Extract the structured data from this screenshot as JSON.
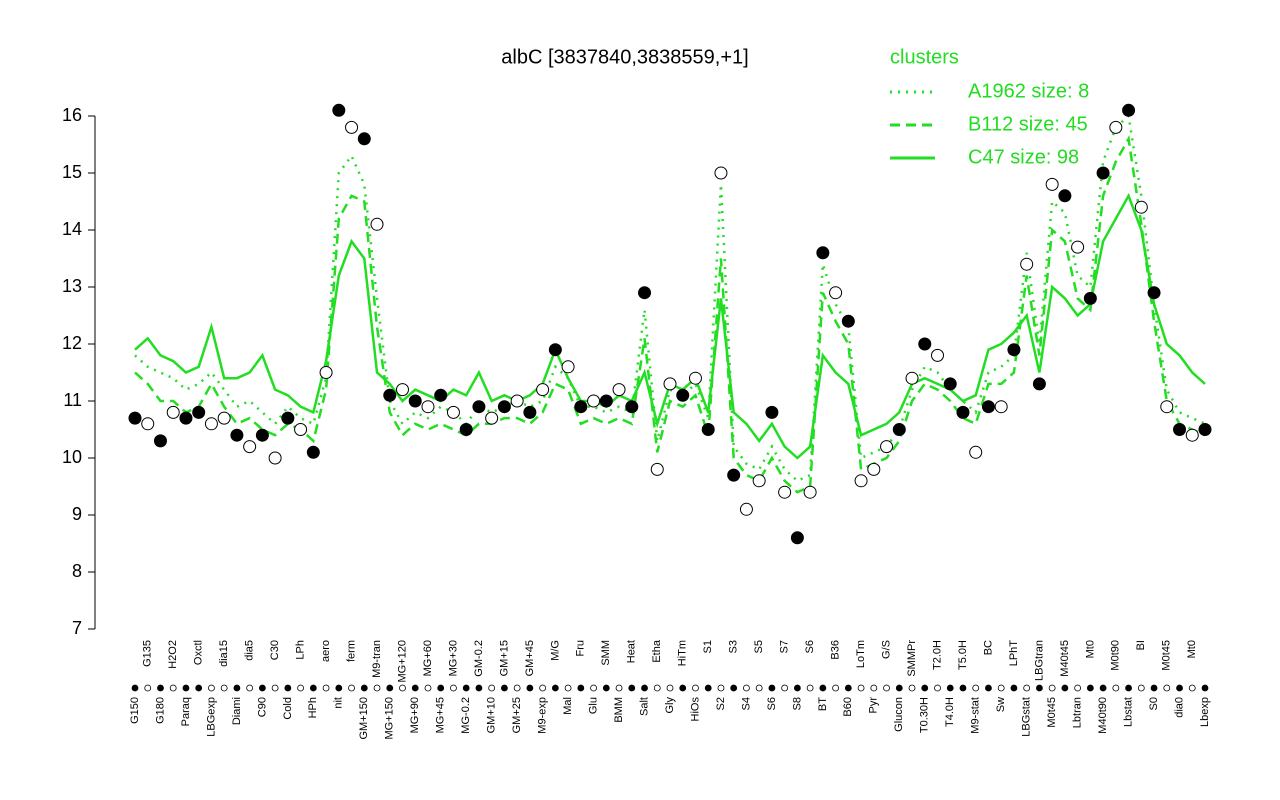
{
  "chart_data": {
    "type": "line",
    "title": "albC [3837840,3838559,+1]",
    "legend_title": "clusters",
    "legend_position": "top-right",
    "ylim": [
      7,
      16
    ],
    "yticks": [
      7,
      8,
      9,
      10,
      11,
      12,
      13,
      14,
      15,
      16
    ],
    "categories": [
      "G150",
      "G135",
      "G180",
      "H2O2",
      "Paraq",
      "Oxctl",
      "LBGexp",
      "dia15",
      "Diami",
      "dia5",
      "C90",
      "C30",
      "Cold",
      "LPh",
      "HPh",
      "aero",
      "nit",
      "ferm",
      "GM+150",
      "M9-tran",
      "MG+150",
      "MG+120",
      "MG+90",
      "MG+60",
      "MG+45",
      "MG+30",
      "MG-0.2",
      "GM-0.2",
      "GM+10",
      "GM+15",
      "GM+25",
      "GM+45",
      "M9-exp",
      "M/G",
      "Mal",
      "Fru",
      "Glu",
      "SMM",
      "BMM",
      "Heat",
      "Salt",
      "Etha",
      "Gly",
      "HiTm",
      "HiOs",
      "S1",
      "S2",
      "S3",
      "S4",
      "S5",
      "S6",
      "S7",
      "S8",
      "S6",
      "BT",
      "B36",
      "B60",
      "LoTm",
      "Pyr",
      "G/S",
      "Glucon",
      "SMMPr",
      "T0.30H",
      "T2.0H",
      "T4.0H",
      "T5.0H",
      "M9-stat",
      "BC",
      "Sw",
      "LPhT",
      "LBGstat",
      "LBGtran",
      "M0t45",
      "M40t45",
      "Lbtran",
      "Mt0",
      "M40t90",
      "M0t90",
      "Lbstat",
      "BI",
      "S0",
      "M0t45",
      "dia0",
      "Mt0",
      "Lbexp"
    ],
    "series": [
      {
        "name": "A1962 size: 8",
        "color": "#22dd22",
        "dash": "dotted",
        "values": [
          11.8,
          11.6,
          11.5,
          11.4,
          11.2,
          11.3,
          11.5,
          11.2,
          10.9,
          11.0,
          10.8,
          10.6,
          10.9,
          10.7,
          10.6,
          11.4,
          15.0,
          15.3,
          14.8,
          12.8,
          11.0,
          10.6,
          10.8,
          10.7,
          10.9,
          10.8,
          10.6,
          10.9,
          10.8,
          10.9,
          11.0,
          10.9,
          11.0,
          11.6,
          11.4,
          10.9,
          10.9,
          10.8,
          10.9,
          10.8,
          12.6,
          10.3,
          11.2,
          11.1,
          11.3,
          10.7,
          14.8,
          10.2,
          9.9,
          9.8,
          10.2,
          9.8,
          9.6,
          9.7,
          13.4,
          12.7,
          12.3,
          10.0,
          10.1,
          10.2,
          10.5,
          11.2,
          11.6,
          11.5,
          11.2,
          11.0,
          10.8,
          11.5,
          11.6,
          11.8,
          13.6,
          12.0,
          14.5,
          14.3,
          13.2,
          13.0,
          15.2,
          15.8,
          16.0,
          14.6,
          12.7,
          11.2,
          10.8,
          10.7,
          10.6
        ]
      },
      {
        "name": "B112 size: 45",
        "color": "#22dd22",
        "dash": "dashed",
        "values": [
          11.5,
          11.3,
          11.0,
          11.0,
          10.8,
          10.9,
          11.3,
          10.9,
          10.6,
          10.7,
          10.5,
          10.4,
          10.6,
          10.5,
          10.3,
          11.2,
          14.2,
          14.6,
          14.5,
          12.3,
          10.8,
          10.4,
          10.6,
          10.5,
          10.6,
          10.5,
          10.4,
          10.6,
          10.6,
          10.7,
          10.7,
          10.6,
          10.8,
          11.3,
          11.2,
          10.6,
          10.7,
          10.6,
          10.7,
          10.6,
          12.1,
          10.1,
          11.0,
          10.9,
          11.1,
          10.4,
          13.5,
          10.0,
          9.7,
          9.6,
          10.0,
          9.6,
          9.4,
          9.5,
          12.9,
          12.4,
          12.0,
          9.8,
          9.9,
          10.0,
          10.3,
          11.0,
          11.3,
          11.2,
          11.0,
          10.7,
          10.6,
          11.3,
          11.3,
          11.5,
          13.2,
          11.8,
          14.0,
          13.8,
          12.8,
          12.6,
          14.6,
          15.2,
          15.6,
          14.1,
          12.4,
          11.0,
          10.6,
          10.5,
          10.4
        ]
      },
      {
        "name": "C47 size: 98",
        "color": "#22dd22",
        "dash": "solid",
        "values": [
          11.9,
          12.1,
          11.8,
          11.7,
          11.5,
          11.6,
          12.3,
          11.4,
          11.4,
          11.5,
          11.8,
          11.2,
          11.1,
          10.9,
          10.8,
          11.7,
          13.2,
          13.8,
          13.5,
          11.5,
          11.3,
          11.0,
          11.2,
          11.1,
          11.0,
          11.2,
          11.1,
          11.5,
          11.0,
          11.1,
          11.0,
          11.1,
          11.3,
          11.9,
          11.4,
          11.0,
          11.0,
          10.9,
          11.1,
          11.0,
          11.5,
          10.6,
          11.3,
          11.2,
          11.4,
          10.8,
          12.8,
          10.8,
          10.6,
          10.3,
          10.6,
          10.2,
          10.0,
          10.2,
          11.8,
          11.5,
          11.3,
          10.4,
          10.5,
          10.6,
          10.8,
          11.3,
          11.4,
          11.3,
          11.2,
          11.0,
          11.1,
          11.9,
          12.0,
          12.2,
          12.5,
          11.5,
          13.0,
          12.8,
          12.5,
          12.7,
          13.8,
          14.2,
          14.6,
          14.0,
          12.7,
          12.0,
          11.8,
          11.5,
          11.3
        ]
      }
    ],
    "points": {
      "values": [
        10.7,
        10.6,
        10.3,
        10.8,
        10.7,
        10.8,
        10.6,
        10.7,
        10.4,
        10.2,
        10.4,
        10.0,
        10.7,
        10.5,
        10.1,
        11.5,
        16.1,
        15.8,
        15.6,
        14.1,
        11.1,
        11.2,
        11.0,
        10.9,
        11.1,
        10.8,
        10.5,
        10.9,
        10.7,
        10.9,
        11.0,
        10.8,
        11.2,
        11.9,
        11.6,
        10.9,
        11.0,
        11.0,
        11.2,
        10.9,
        12.9,
        9.8,
        11.3,
        11.1,
        11.4,
        10.5,
        15.0,
        9.7,
        9.1,
        9.6,
        10.8,
        9.4,
        8.6,
        9.4,
        13.6,
        12.9,
        12.4,
        9.6,
        9.8,
        10.2,
        10.5,
        11.4,
        12.0,
        11.8,
        11.3,
        10.8,
        10.1,
        10.9,
        10.9,
        11.9,
        13.4,
        11.3,
        14.8,
        14.6,
        13.7,
        12.8,
        15.0,
        15.8,
        16.1,
        14.4,
        12.9,
        10.9,
        10.5,
        10.4,
        10.5
      ],
      "fills": [
        "#000",
        "#fff",
        "#000",
        "#fff",
        "#000",
        "#000",
        "#fff",
        "#fff",
        "#000",
        "#fff",
        "#000",
        "#fff",
        "#000",
        "#fff",
        "#000",
        "#fff",
        "#000",
        "#fff",
        "#000",
        "#fff",
        "#000",
        "#fff",
        "#000",
        "#fff",
        "#000",
        "#fff",
        "#000",
        "#000",
        "#fff",
        "#000",
        "#fff",
        "#000",
        "#fff",
        "#000",
        "#fff",
        "#000",
        "#fff",
        "#000",
        "#fff",
        "#000",
        "#000",
        "#fff",
        "#fff",
        "#000",
        "#fff",
        "#000",
        "#fff",
        "#000",
        "#fff",
        "#fff",
        "#000",
        "#fff",
        "#000",
        "#fff",
        "#000",
        "#fff",
        "#000",
        "#fff",
        "#fff",
        "#fff",
        "#000",
        "#fff",
        "#000",
        "#fff",
        "#000",
        "#000",
        "#fff",
        "#000",
        "#fff",
        "#000",
        "#fff",
        "#000",
        "#fff",
        "#000",
        "#fff",
        "#000",
        "#000",
        "#fff",
        "#000",
        "#fff",
        "#000",
        "#fff",
        "#000",
        "#fff",
        "#000"
      ]
    }
  }
}
